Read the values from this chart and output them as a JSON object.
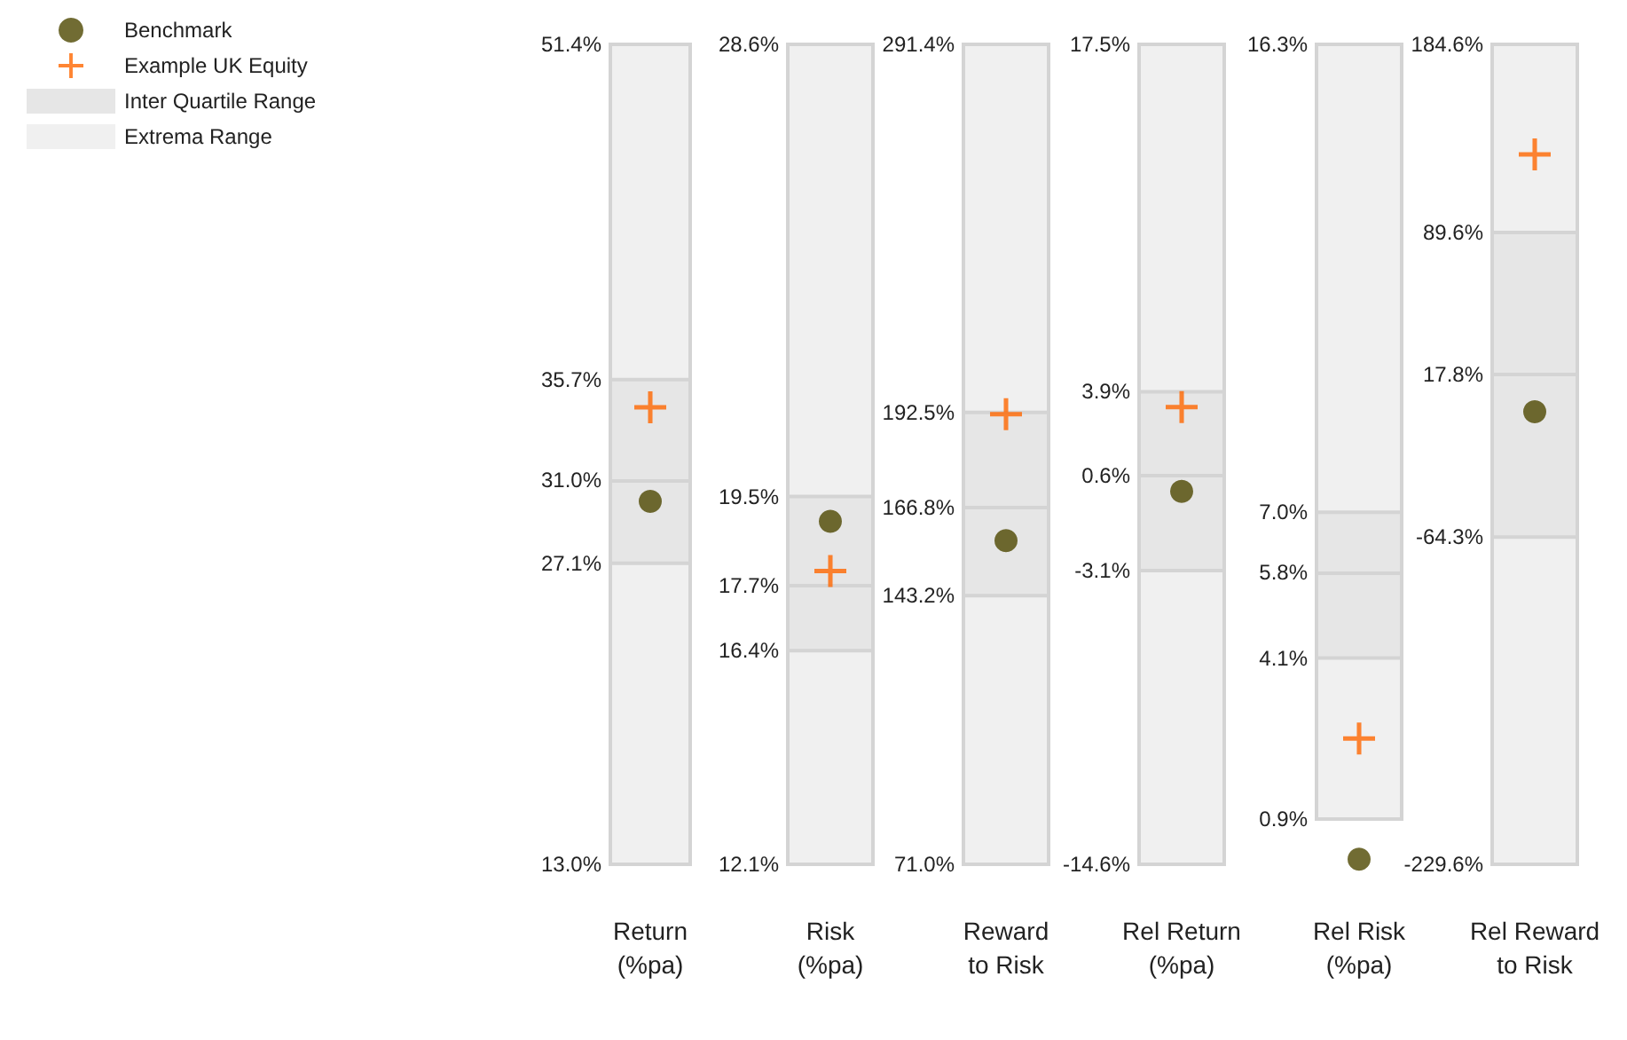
{
  "chart_data": [
    {
      "type": "bar",
      "categories": [
        "Return (%pa)"
      ],
      "legend": "left",
      "ylim": [
        13.0,
        51.4
      ],
      "yticks": [
        {
          "value": 13.0,
          "label": "13.0%"
        },
        {
          "value": 27.1,
          "label": "27.1%"
        },
        {
          "value": 31.0,
          "label": "31.0%"
        },
        {
          "value": 35.7,
          "label": "35.7%"
        },
        {
          "value": 51.4,
          "label": "51.4%"
        }
      ],
      "ref_lines": [
        {
          "axis": "y",
          "value": 31.0,
          "color": "#d4d4d4"
        }
      ],
      "series": [
        {
          "name": "Extrema Range",
          "color": "#f0f0f0",
          "values": [
            38.4
          ],
          "base": [
            13.0
          ]
        },
        {
          "name": "Inter Quartile Range",
          "color": "#e6e6e6",
          "values": [
            8.6
          ],
          "base": [
            27.1
          ]
        },
        {
          "type": "scatter",
          "name": "Benchmark",
          "color": "#4d4700",
          "marker": "circle",
          "x": [
            "Return (%pa)"
          ],
          "values": [
            30.0
          ]
        },
        {
          "type": "scatter",
          "name": "Example UK Equity",
          "color": "#ff6600",
          "marker": "cross",
          "x": [
            "Return (%pa)"
          ],
          "values": [
            34.4
          ]
        }
      ]
    },
    {
      "type": "bar",
      "categories": [
        "Risk (%pa)"
      ],
      "ylim": [
        12.1,
        28.6
      ],
      "yticks": [
        {
          "value": 12.1,
          "label": "12.1%"
        },
        {
          "value": 16.4,
          "label": "16.4%"
        },
        {
          "value": 17.7,
          "label": "17.7%"
        },
        {
          "value": 19.5,
          "label": "19.5%"
        },
        {
          "value": 28.6,
          "label": "28.6%"
        }
      ],
      "ref_lines": [
        {
          "axis": "y",
          "value": 17.7,
          "color": "#d4d4d4"
        }
      ],
      "series": [
        {
          "color": "#f0f0f0",
          "values": [
            16.5
          ],
          "base": [
            12.1
          ]
        },
        {
          "color": "#e6e6e6",
          "values": [
            3.1
          ],
          "base": [
            16.4
          ]
        },
        {
          "type": "scatter",
          "color": "#4d4700",
          "marker": "circle",
          "x": [
            "Risk (%pa)"
          ],
          "values": [
            19.0
          ]
        },
        {
          "type": "scatter",
          "color": "#ff6600",
          "marker": "cross",
          "x": [
            "Risk (%pa)"
          ],
          "values": [
            18.0
          ]
        }
      ]
    },
    {
      "type": "bar",
      "categories": [
        "Reward to Risk"
      ],
      "ylim": [
        71.0,
        291.4
      ],
      "yticks": [
        {
          "value": 71.0,
          "label": "71.0%"
        },
        {
          "value": 143.2,
          "label": "143.2%"
        },
        {
          "value": 166.8,
          "label": "166.8%"
        },
        {
          "value": 192.5,
          "label": "192.5%"
        },
        {
          "value": 291.4,
          "label": "291.4%"
        }
      ],
      "ref_lines": [
        {
          "axis": "y",
          "value": 166.8,
          "color": "#d4d4d4"
        }
      ],
      "series": [
        {
          "color": "#f0f0f0",
          "values": [
            220.4
          ],
          "base": [
            71.0
          ]
        },
        {
          "color": "#e6e6e6",
          "values": [
            49.3
          ],
          "base": [
            143.2
          ]
        },
        {
          "type": "scatter",
          "color": "#4d4700",
          "marker": "circle",
          "x": [
            "Reward to Risk"
          ],
          "values": [
            158
          ]
        },
        {
          "type": "scatter",
          "color": "#ff6600",
          "marker": "cross",
          "x": [
            "Reward to Risk"
          ],
          "values": [
            192
          ]
        }
      ]
    },
    {
      "type": "bar",
      "categories": [
        "Rel Return (%pa)"
      ],
      "ylim": [
        -14.6,
        17.5
      ],
      "yticks": [
        {
          "value": -14.6,
          "label": "-14.6%"
        },
        {
          "value": -3.1,
          "label": "-3.1%"
        },
        {
          "value": 0.6,
          "label": "0.6%"
        },
        {
          "value": 3.9,
          "label": "3.9%"
        },
        {
          "value": 17.5,
          "label": "17.5%"
        }
      ],
      "ref_lines": [
        {
          "axis": "y",
          "value": 0.6,
          "color": "#d4d4d4"
        }
      ],
      "series": [
        {
          "color": "#f0f0f0",
          "values": [
            32.1
          ],
          "base": [
            -14.6
          ]
        },
        {
          "color": "#e6e6e6",
          "values": [
            7.0
          ],
          "base": [
            -3.1
          ]
        },
        {
          "type": "scatter",
          "color": "#4d4700",
          "marker": "circle",
          "x": [
            "Rel Return (%pa)"
          ],
          "values": [
            0.0
          ]
        },
        {
          "type": "scatter",
          "color": "#ff6600",
          "marker": "cross",
          "x": [
            "Rel Return (%pa)"
          ],
          "values": [
            3.3
          ]
        }
      ]
    },
    {
      "type": "bar",
      "categories": [
        "Rel Risk (%pa)"
      ],
      "ylim": [
        0.0,
        16.3
      ],
      "yticks": [
        {
          "value": 0.9,
          "label": "0.9%"
        },
        {
          "value": 4.1,
          "label": "4.1%"
        },
        {
          "value": 5.8,
          "label": "5.8%"
        },
        {
          "value": 7.0,
          "label": "7.0%"
        },
        {
          "value": 16.3,
          "label": "16.3%"
        }
      ],
      "ref_lines": [
        {
          "axis": "y",
          "value": 5.8,
          "color": "#d4d4d4"
        }
      ],
      "series": [
        {
          "color": "#f0f0f0",
          "values": [
            15.4
          ],
          "base": [
            0.9
          ]
        },
        {
          "color": "#e6e6e6",
          "values": [
            2.9
          ],
          "base": [
            4.1
          ]
        },
        {
          "type": "scatter",
          "color": "#4d4700",
          "marker": "circle",
          "x": [
            "Rel Risk (%pa)"
          ],
          "values": [
            0.1
          ]
        },
        {
          "type": "scatter",
          "color": "#ff6600",
          "marker": "cross",
          "x": [
            "Rel Risk (%pa)"
          ],
          "values": [
            2.5
          ]
        }
      ]
    },
    {
      "type": "bar",
      "categories": [
        "Rel Reward to Risk"
      ],
      "ylim": [
        -229.6,
        184.6
      ],
      "yticks": [
        {
          "value": -229.6,
          "label": "-229.6%"
        },
        {
          "value": -64.3,
          "label": "-64.3%"
        },
        {
          "value": 17.8,
          "label": "17.8%"
        },
        {
          "value": 89.6,
          "label": "89.6%"
        },
        {
          "value": 184.6,
          "label": "184.6%"
        }
      ],
      "ref_lines": [
        {
          "axis": "y",
          "value": 17.8,
          "color": "#d4d4d4"
        }
      ],
      "series": [
        {
          "color": "#f0f0f0",
          "values": [
            414.2
          ],
          "base": [
            -229.6
          ]
        },
        {
          "color": "#e6e6e6",
          "values": [
            153.9
          ],
          "base": [
            -64.3
          ]
        },
        {
          "type": "scatter",
          "color": "#4d4700",
          "marker": "circle",
          "x": [
            "Rel Reward to Risk"
          ],
          "values": [
            -1
          ]
        },
        {
          "type": "scatter",
          "color": "#ff6600",
          "marker": "cross",
          "x": [
            "Rel Reward to Risk"
          ],
          "values": [
            129
          ]
        }
      ]
    }
  ]
}
